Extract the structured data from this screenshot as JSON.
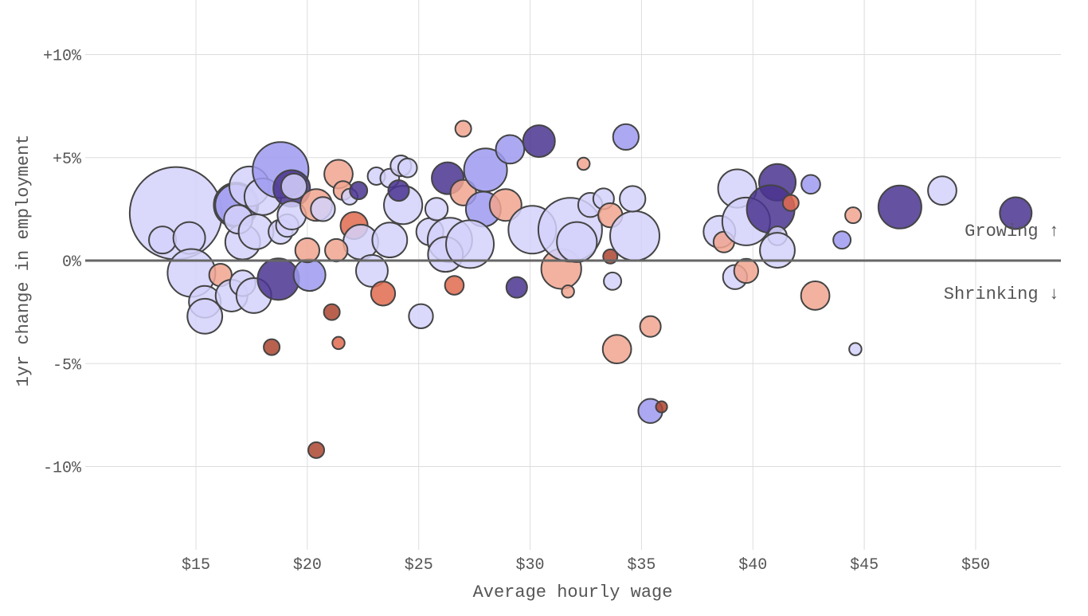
{
  "chart_data": {
    "type": "scatter",
    "xlabel": "Average hourly wage",
    "ylabel": "1yr change in employment",
    "xlim": [
      10.5,
      53.8
    ],
    "ylim": [
      -14,
      12.6
    ],
    "x_ticks": [
      15,
      20,
      25,
      30,
      35,
      40,
      45,
      50
    ],
    "x_tick_labels": [
      "$15",
      "$20",
      "$25",
      "$30",
      "$35",
      "$40",
      "$45",
      "$50"
    ],
    "y_ticks": [
      10,
      5,
      0,
      -5,
      -10
    ],
    "y_tick_labels": [
      "+10%",
      "+5%",
      "0%",
      "-5%",
      "-10%"
    ],
    "grid": true,
    "annotations": {
      "growing": "Growing ↑",
      "shrinking": "Shrinking ↓"
    },
    "colors": {
      "light": "#d3d1fa",
      "mid": "#9e9af0",
      "dark": "#4a348f",
      "salmon": "#f1a48f",
      "orange": "#e06a4f",
      "darkred": "#ad4530",
      "zero_line": "#666666",
      "grid": "#dddddd"
    },
    "point_fields": [
      "wage",
      "change_pct",
      "size",
      "color_group"
    ],
    "points": [
      [
        14.1,
        2.3,
        33.6,
        "light"
      ],
      [
        13.5,
        1.0,
        2.9,
        "light"
      ],
      [
        14.7,
        1.1,
        4,
        "light"
      ],
      [
        14.8,
        -0.6,
        9,
        "light"
      ],
      [
        15.4,
        -2.0,
        4,
        "light"
      ],
      [
        15.4,
        -2.7,
        4.8,
        "light"
      ],
      [
        16.1,
        -0.7,
        2,
        "salmon"
      ],
      [
        16.6,
        -1.7,
        4,
        "light"
      ],
      [
        17.1,
        -1.1,
        2.6,
        "light"
      ],
      [
        17.6,
        -1.7,
        4.8,
        "light"
      ],
      [
        18.7,
        -0.9,
        6.8,
        "dark"
      ],
      [
        20.1,
        -0.7,
        4,
        "mid"
      ],
      [
        16.8,
        2.7,
        7.8,
        "light"
      ],
      [
        16.8,
        2.7,
        6.8,
        "mid"
      ],
      [
        17.4,
        3.6,
        6.3,
        "light"
      ],
      [
        18.0,
        3.1,
        5.3,
        "light"
      ],
      [
        18.8,
        4.4,
        12.3,
        "mid"
      ],
      [
        19.3,
        3.5,
        5.3,
        "dark"
      ],
      [
        19.4,
        3.6,
        2.6,
        "light"
      ],
      [
        17.1,
        0.9,
        4.8,
        "light"
      ],
      [
        16.9,
        2.0,
        3.2,
        "light"
      ],
      [
        17.7,
        1.4,
        4.8,
        "light"
      ],
      [
        18.8,
        1.4,
        2.3,
        "light"
      ],
      [
        19.1,
        1.7,
        2,
        "light"
      ],
      [
        19.3,
        2.2,
        3.2,
        "light"
      ],
      [
        20.4,
        2.7,
        4,
        "salmon"
      ],
      [
        20.7,
        2.5,
        2.3,
        "light"
      ],
      [
        21.4,
        4.2,
        3.2,
        "salmon"
      ],
      [
        21.6,
        3.4,
        1.4,
        "salmon"
      ],
      [
        21.9,
        3.1,
        1,
        "light"
      ],
      [
        22.3,
        3.4,
        1.2,
        "dark"
      ],
      [
        22.1,
        1.7,
        2.9,
        "orange"
      ],
      [
        22.4,
        0.9,
        4.8,
        "light"
      ],
      [
        20.0,
        0.5,
        2.3,
        "salmon"
      ],
      [
        21.3,
        0.5,
        2,
        "salmon"
      ],
      [
        22.9,
        -0.5,
        4,
        "light"
      ],
      [
        23.1,
        4.1,
        1.2,
        "light"
      ],
      [
        23.4,
        -1.6,
        2.3,
        "orange"
      ],
      [
        21.1,
        -2.5,
        1,
        "darkred"
      ],
      [
        21.4,
        -4.0,
        0.6,
        "orange"
      ],
      [
        18.4,
        -4.2,
        1,
        "darkred"
      ],
      [
        20.4,
        -9.2,
        1,
        "darkred"
      ],
      [
        23.7,
        1.0,
        4.8,
        "light"
      ],
      [
        23.7,
        4.0,
        1.4,
        "light"
      ],
      [
        24.2,
        4.6,
        1.7,
        "light"
      ],
      [
        24.5,
        4.5,
        1.4,
        "light"
      ],
      [
        24.3,
        2.7,
        5.8,
        "light"
      ],
      [
        24.1,
        3.4,
        1.7,
        "dark"
      ],
      [
        25.5,
        1.4,
        2.9,
        "light"
      ],
      [
        25.1,
        -2.7,
        2.3,
        "light"
      ],
      [
        25.8,
        2.5,
        2,
        "light"
      ],
      [
        26.3,
        4.0,
        4,
        "dark"
      ],
      [
        27.0,
        3.3,
        2.6,
        "salmon"
      ],
      [
        27.0,
        6.4,
        1,
        "salmon"
      ],
      [
        28.0,
        4.4,
        7.3,
        "mid"
      ],
      [
        27.9,
        2.5,
        4.8,
        "mid"
      ],
      [
        28.9,
        2.7,
        4,
        "salmon"
      ],
      [
        26.4,
        1.0,
        7.8,
        "light"
      ],
      [
        26.2,
        0.3,
        4.8,
        "light"
      ],
      [
        27.3,
        0.8,
        9,
        "light"
      ],
      [
        26.6,
        -1.2,
        1.4,
        "orange"
      ],
      [
        29.1,
        5.4,
        3.2,
        "mid"
      ],
      [
        30.4,
        5.8,
        4,
        "dark"
      ],
      [
        30.1,
        1.5,
        9,
        "light"
      ],
      [
        31.4,
        -0.4,
        6.3,
        "salmon"
      ],
      [
        31.8,
        1.5,
        16,
        "light"
      ],
      [
        32.1,
        0.9,
        6.3,
        "light"
      ],
      [
        31.7,
        -1.5,
        0.6,
        "salmon"
      ],
      [
        29.4,
        -1.3,
        1.7,
        "dark"
      ],
      [
        32.4,
        4.7,
        0.6,
        "salmon"
      ],
      [
        32.7,
        2.7,
        2.3,
        "light"
      ],
      [
        33.3,
        3.0,
        1.7,
        "light"
      ],
      [
        33.6,
        2.2,
        2.3,
        "salmon"
      ],
      [
        33.7,
        -1.0,
        1.2,
        "light"
      ],
      [
        33.6,
        0.2,
        0.8,
        "darkred"
      ],
      [
        34.7,
        1.2,
        9.6,
        "light"
      ],
      [
        34.6,
        3.0,
        2.6,
        "light"
      ],
      [
        34.3,
        6.0,
        2.6,
        "mid"
      ],
      [
        33.9,
        -4.3,
        3.2,
        "salmon"
      ],
      [
        35.4,
        -3.2,
        1.7,
        "salmon"
      ],
      [
        35.4,
        -7.3,
        2.3,
        "mid"
      ],
      [
        35.9,
        -7.1,
        0.5,
        "darkred"
      ],
      [
        38.5,
        1.4,
        4,
        "light"
      ],
      [
        38.7,
        0.9,
        1.7,
        "salmon"
      ],
      [
        39.3,
        3.5,
        5.8,
        "light"
      ],
      [
        39.2,
        -0.8,
        2.3,
        "light"
      ],
      [
        39.7,
        -0.5,
        2.3,
        "salmon"
      ],
      [
        39.7,
        1.9,
        9,
        "light"
      ],
      [
        41.1,
        3.8,
        5.3,
        "dark"
      ],
      [
        40.8,
        2.5,
        9,
        "dark"
      ],
      [
        41.1,
        1.2,
        1.4,
        "light"
      ],
      [
        41.1,
        0.5,
        4.8,
        "light"
      ],
      [
        41.7,
        2.8,
        1,
        "orange"
      ],
      [
        42.6,
        3.7,
        1.4,
        "mid"
      ],
      [
        42.8,
        -1.7,
        3.2,
        "salmon"
      ],
      [
        44.0,
        1.0,
        1.2,
        "mid"
      ],
      [
        44.5,
        2.2,
        1,
        "salmon"
      ],
      [
        44.6,
        -4.3,
        0.6,
        "light"
      ],
      [
        46.6,
        2.6,
        7.3,
        "dark"
      ],
      [
        48.5,
        3.4,
        3.2,
        "light"
      ],
      [
        51.8,
        2.3,
        4,
        "dark"
      ]
    ]
  }
}
